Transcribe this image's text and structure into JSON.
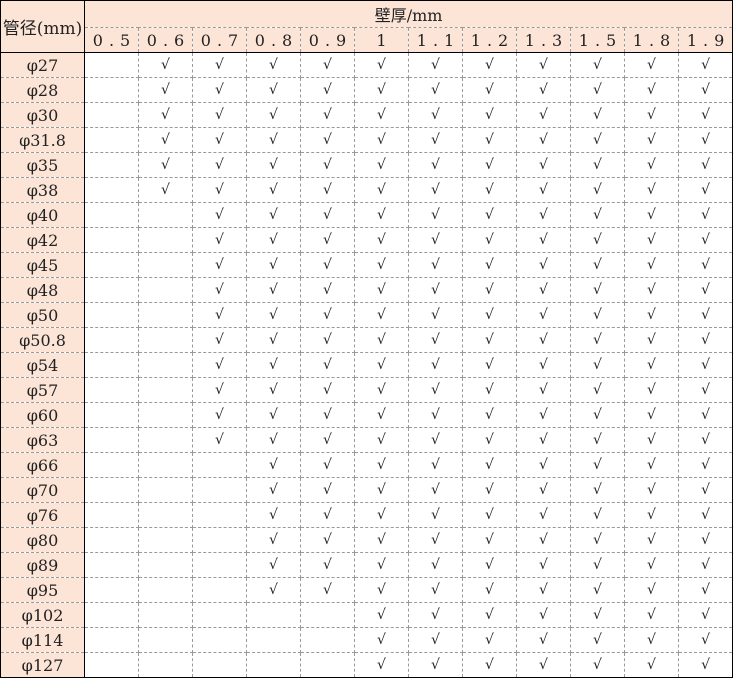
{
  "table": {
    "corner_label": "管径(mm)",
    "group_label": "壁厚/mm",
    "columns": [
      "0.5",
      "0.6",
      "0.7",
      "0.8",
      "0.9",
      "1",
      "1.1",
      "1.2",
      "1.3",
      "1.5",
      "1.8",
      "1.9"
    ],
    "check_mark": "√",
    "rows": [
      {
        "label": "φ27",
        "first_checked": "0.6"
      },
      {
        "label": "φ28",
        "first_checked": "0.6"
      },
      {
        "label": "φ30",
        "first_checked": "0.6"
      },
      {
        "label": "φ31.8",
        "first_checked": "0.6"
      },
      {
        "label": "φ35",
        "first_checked": "0.6"
      },
      {
        "label": "φ38",
        "first_checked": "0.6"
      },
      {
        "label": "φ40",
        "first_checked": "0.7"
      },
      {
        "label": "φ42",
        "first_checked": "0.7"
      },
      {
        "label": "φ45",
        "first_checked": "0.7"
      },
      {
        "label": "φ48",
        "first_checked": "0.7"
      },
      {
        "label": "φ50",
        "first_checked": "0.7"
      },
      {
        "label": "φ50.8",
        "first_checked": "0.7"
      },
      {
        "label": "φ54",
        "first_checked": "0.7"
      },
      {
        "label": "φ57",
        "first_checked": "0.7"
      },
      {
        "label": "φ60",
        "first_checked": "0.7"
      },
      {
        "label": "φ63",
        "first_checked": "0.7"
      },
      {
        "label": "φ66",
        "first_checked": "0.8"
      },
      {
        "label": "φ70",
        "first_checked": "0.8"
      },
      {
        "label": "φ76",
        "first_checked": "0.8"
      },
      {
        "label": "φ80",
        "first_checked": "0.8"
      },
      {
        "label": "φ89",
        "first_checked": "0.8"
      },
      {
        "label": "φ95",
        "first_checked": "0.8"
      },
      {
        "label": "φ102",
        "first_checked": "1"
      },
      {
        "label": "φ114",
        "first_checked": "1"
      },
      {
        "label": "φ127",
        "first_checked": "1"
      }
    ],
    "colors": {
      "header_bg": "#fce4d6",
      "border": "#000000",
      "grid": "#9a9a9a"
    }
  }
}
